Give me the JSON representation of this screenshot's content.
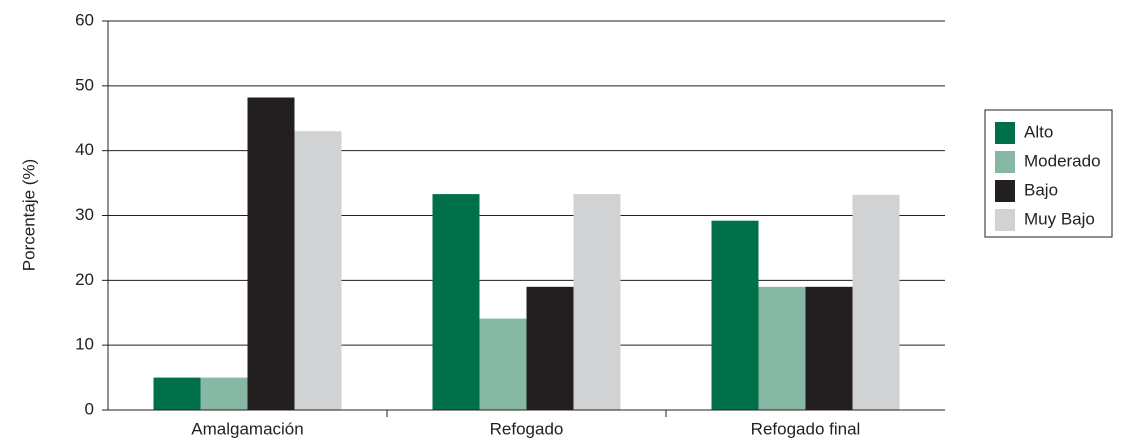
{
  "chart_data": {
    "type": "bar",
    "y_label": "Porcentaje (%)",
    "categories": [
      "Amalgamación",
      "Refogado",
      "Refogado final"
    ],
    "series": [
      {
        "name": "Alto",
        "color": "#00704a",
        "values": [
          5,
          33.3,
          29.2
        ]
      },
      {
        "name": "Moderado",
        "color": "#86b8a4",
        "values": [
          5,
          14.1,
          19
        ]
      },
      {
        "name": "Bajo",
        "color": "#231f20",
        "values": [
          48.2,
          19,
          19
        ]
      },
      {
        "name": "Muy Bajo",
        "color": "#d1d2d4",
        "values": [
          43,
          33.3,
          33.2
        ]
      }
    ],
    "ylim": [
      0,
      60
    ],
    "yticks": [
      0,
      10,
      20,
      30,
      40,
      50,
      60
    ],
    "grid": true,
    "legend": "right"
  }
}
